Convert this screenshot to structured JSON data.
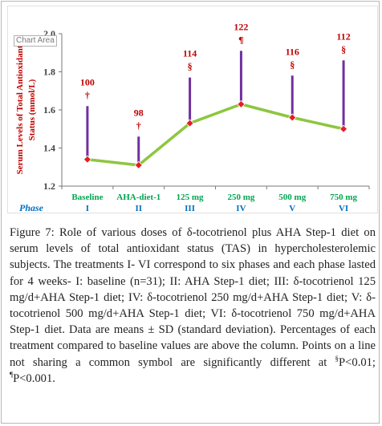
{
  "chart_data": {
    "type": "line",
    "x_label": "Phase",
    "categories": [
      "Baseline",
      "AHA-diet-1",
      "125 mg",
      "250 mg",
      "500 mg",
      "750 mg"
    ],
    "phases": [
      "I",
      "II",
      "III",
      "IV",
      "V",
      "VI"
    ],
    "ylabel_line1": "Serum Levels of Total Antioxidant",
    "ylabel_line2": "Status (mmol/L)",
    "ylim": [
      1.2,
      2.0
    ],
    "yticks": [
      "1.2",
      "1.4",
      "1.6",
      "1.8",
      "2.0"
    ],
    "ytick_values": [
      1.2,
      1.4,
      1.6,
      1.8,
      2.0
    ],
    "values": [
      1.34,
      1.31,
      1.53,
      1.63,
      1.56,
      1.5
    ],
    "error_upper": [
      1.62,
      1.46,
      1.77,
      1.91,
      1.78,
      1.86
    ],
    "percent_labels": [
      "100",
      "98",
      "114",
      "122",
      "116",
      "112"
    ],
    "symbols": [
      "†",
      "†",
      "§",
      "¶",
      "§",
      "§"
    ],
    "grid": false,
    "colors": {
      "line": "#8dc63f",
      "marker": "#e31e24",
      "error_bar": "#7030a0",
      "annotation": "#c00000",
      "category_label": "#00a651",
      "phase_label": "#0070c0",
      "axis": "#7a7a7a"
    }
  },
  "chart_area_tag": "Chart Area",
  "caption": {
    "label": "Figure 7:",
    "text": "Role of various doses of δ-tocotrienol plus AHA Step-1 diet on serum levels of total antioxidant status (TAS) in hypercholesterolemic subjects. The treatments I- VI correspond to six phases and each phase lasted for 4 weeks- I: baseline (n=31); II: AHA Step-1 diet; III: δ-tocotrienol 125 mg/d+AHA Step-1 diet; IV: δ-tocotrienol 250 mg/d+AHA Step-1 diet; V: δ-tocotrienol 500 mg/d+AHA Step-1 diet; VI: δ-tocotrienol 750 mg/d+AHA Step-1 diet. Data are means ± SD (standard deviation). Percentages of each treatment compared to baseline values are above the column. Points on a line not sharing a common symbol are significantly different at ",
    "sig1_sup": "§",
    "sig1_text": "P<0.01; ",
    "sig2_sup": "¶",
    "sig2_text": "P<0.001."
  }
}
